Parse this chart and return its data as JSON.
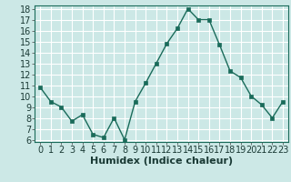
{
  "x": [
    0,
    1,
    2,
    3,
    4,
    5,
    6,
    7,
    8,
    9,
    10,
    11,
    12,
    13,
    14,
    15,
    16,
    17,
    18,
    19,
    20,
    21,
    22,
    23
  ],
  "y": [
    10.8,
    9.5,
    9.0,
    7.7,
    8.3,
    6.5,
    6.2,
    8.0,
    6.0,
    9.5,
    11.2,
    13.0,
    14.8,
    16.2,
    18.0,
    17.0,
    17.0,
    14.7,
    12.3,
    11.7,
    10.0,
    9.2,
    8.0,
    9.5
  ],
  "xlabel": "Humidex (Indice chaleur)",
  "line_color": "#1a6b5a",
  "marker_color": "#1a6b5a",
  "bg_color": "#cce8e6",
  "grid_color": "#ffffff",
  "ylim": [
    6,
    18
  ],
  "xlim": [
    -0.5,
    23.5
  ],
  "yticks": [
    6,
    7,
    8,
    9,
    10,
    11,
    12,
    13,
    14,
    15,
    16,
    17,
    18
  ],
  "xticks": [
    0,
    1,
    2,
    3,
    4,
    5,
    6,
    7,
    8,
    9,
    10,
    11,
    12,
    13,
    14,
    15,
    16,
    17,
    18,
    19,
    20,
    21,
    22,
    23
  ],
  "tick_fontsize": 7,
  "xlabel_fontsize": 8
}
